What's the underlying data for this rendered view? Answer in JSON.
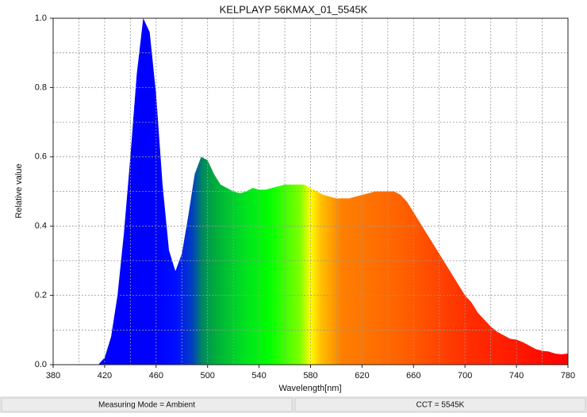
{
  "chart_data": {
    "type": "area",
    "title": "KELPLAYP 56KMAX_01_5545K",
    "x_label": "Wavelength[nm]",
    "y_label": "Relative value",
    "x": [
      415,
      420,
      425,
      430,
      435,
      440,
      445,
      450,
      455,
      460,
      465,
      470,
      475,
      480,
      485,
      490,
      495,
      500,
      505,
      510,
      515,
      520,
      525,
      530,
      535,
      540,
      545,
      550,
      555,
      560,
      565,
      570,
      575,
      580,
      585,
      590,
      595,
      600,
      605,
      610,
      615,
      620,
      625,
      630,
      635,
      640,
      645,
      650,
      655,
      660,
      665,
      670,
      675,
      680,
      685,
      690,
      695,
      700,
      705,
      710,
      715,
      720,
      725,
      730,
      735,
      740,
      745,
      750,
      755,
      760,
      765,
      770,
      775,
      780
    ],
    "values": [
      0,
      0.02,
      0.08,
      0.2,
      0.38,
      0.6,
      0.84,
      1.0,
      0.96,
      0.78,
      0.52,
      0.33,
      0.27,
      0.32,
      0.43,
      0.55,
      0.6,
      0.59,
      0.55,
      0.52,
      0.51,
      0.5,
      0.495,
      0.5,
      0.51,
      0.505,
      0.505,
      0.51,
      0.515,
      0.52,
      0.52,
      0.52,
      0.52,
      0.51,
      0.5,
      0.49,
      0.485,
      0.48,
      0.48,
      0.48,
      0.485,
      0.49,
      0.495,
      0.5,
      0.5,
      0.5,
      0.5,
      0.49,
      0.47,
      0.44,
      0.41,
      0.38,
      0.35,
      0.32,
      0.29,
      0.26,
      0.23,
      0.2,
      0.18,
      0.15,
      0.13,
      0.11,
      0.095,
      0.085,
      0.075,
      0.072,
      0.065,
      0.055,
      0.045,
      0.04,
      0.038,
      0.032,
      0.03,
      0.032
    ],
    "xlim": [
      380,
      780
    ],
    "xticks": [
      380,
      420,
      460,
      500,
      540,
      580,
      620,
      660,
      700,
      740,
      780
    ],
    "xminor_ticks": [
      400,
      440,
      480,
      520,
      560,
      600,
      640,
      680,
      720,
      760
    ],
    "ylim": [
      0,
      1
    ],
    "yticks": [
      {
        "value": 0,
        "label": "0.0"
      },
      {
        "value": 0.2,
        "label": "0.2"
      },
      {
        "value": 0.4,
        "label": "0.4"
      },
      {
        "value": 0.6,
        "label": "0.6"
      },
      {
        "value": 0.8,
        "label": "0.8"
      },
      {
        "value": 1,
        "label": "1.0"
      }
    ],
    "yminor_ticks": [
      0.1,
      0.3,
      0.5,
      0.7,
      0.9
    ],
    "grid": true,
    "status": [
      "Measuring Mode = Ambient",
      "CCT = 5545K"
    ]
  }
}
